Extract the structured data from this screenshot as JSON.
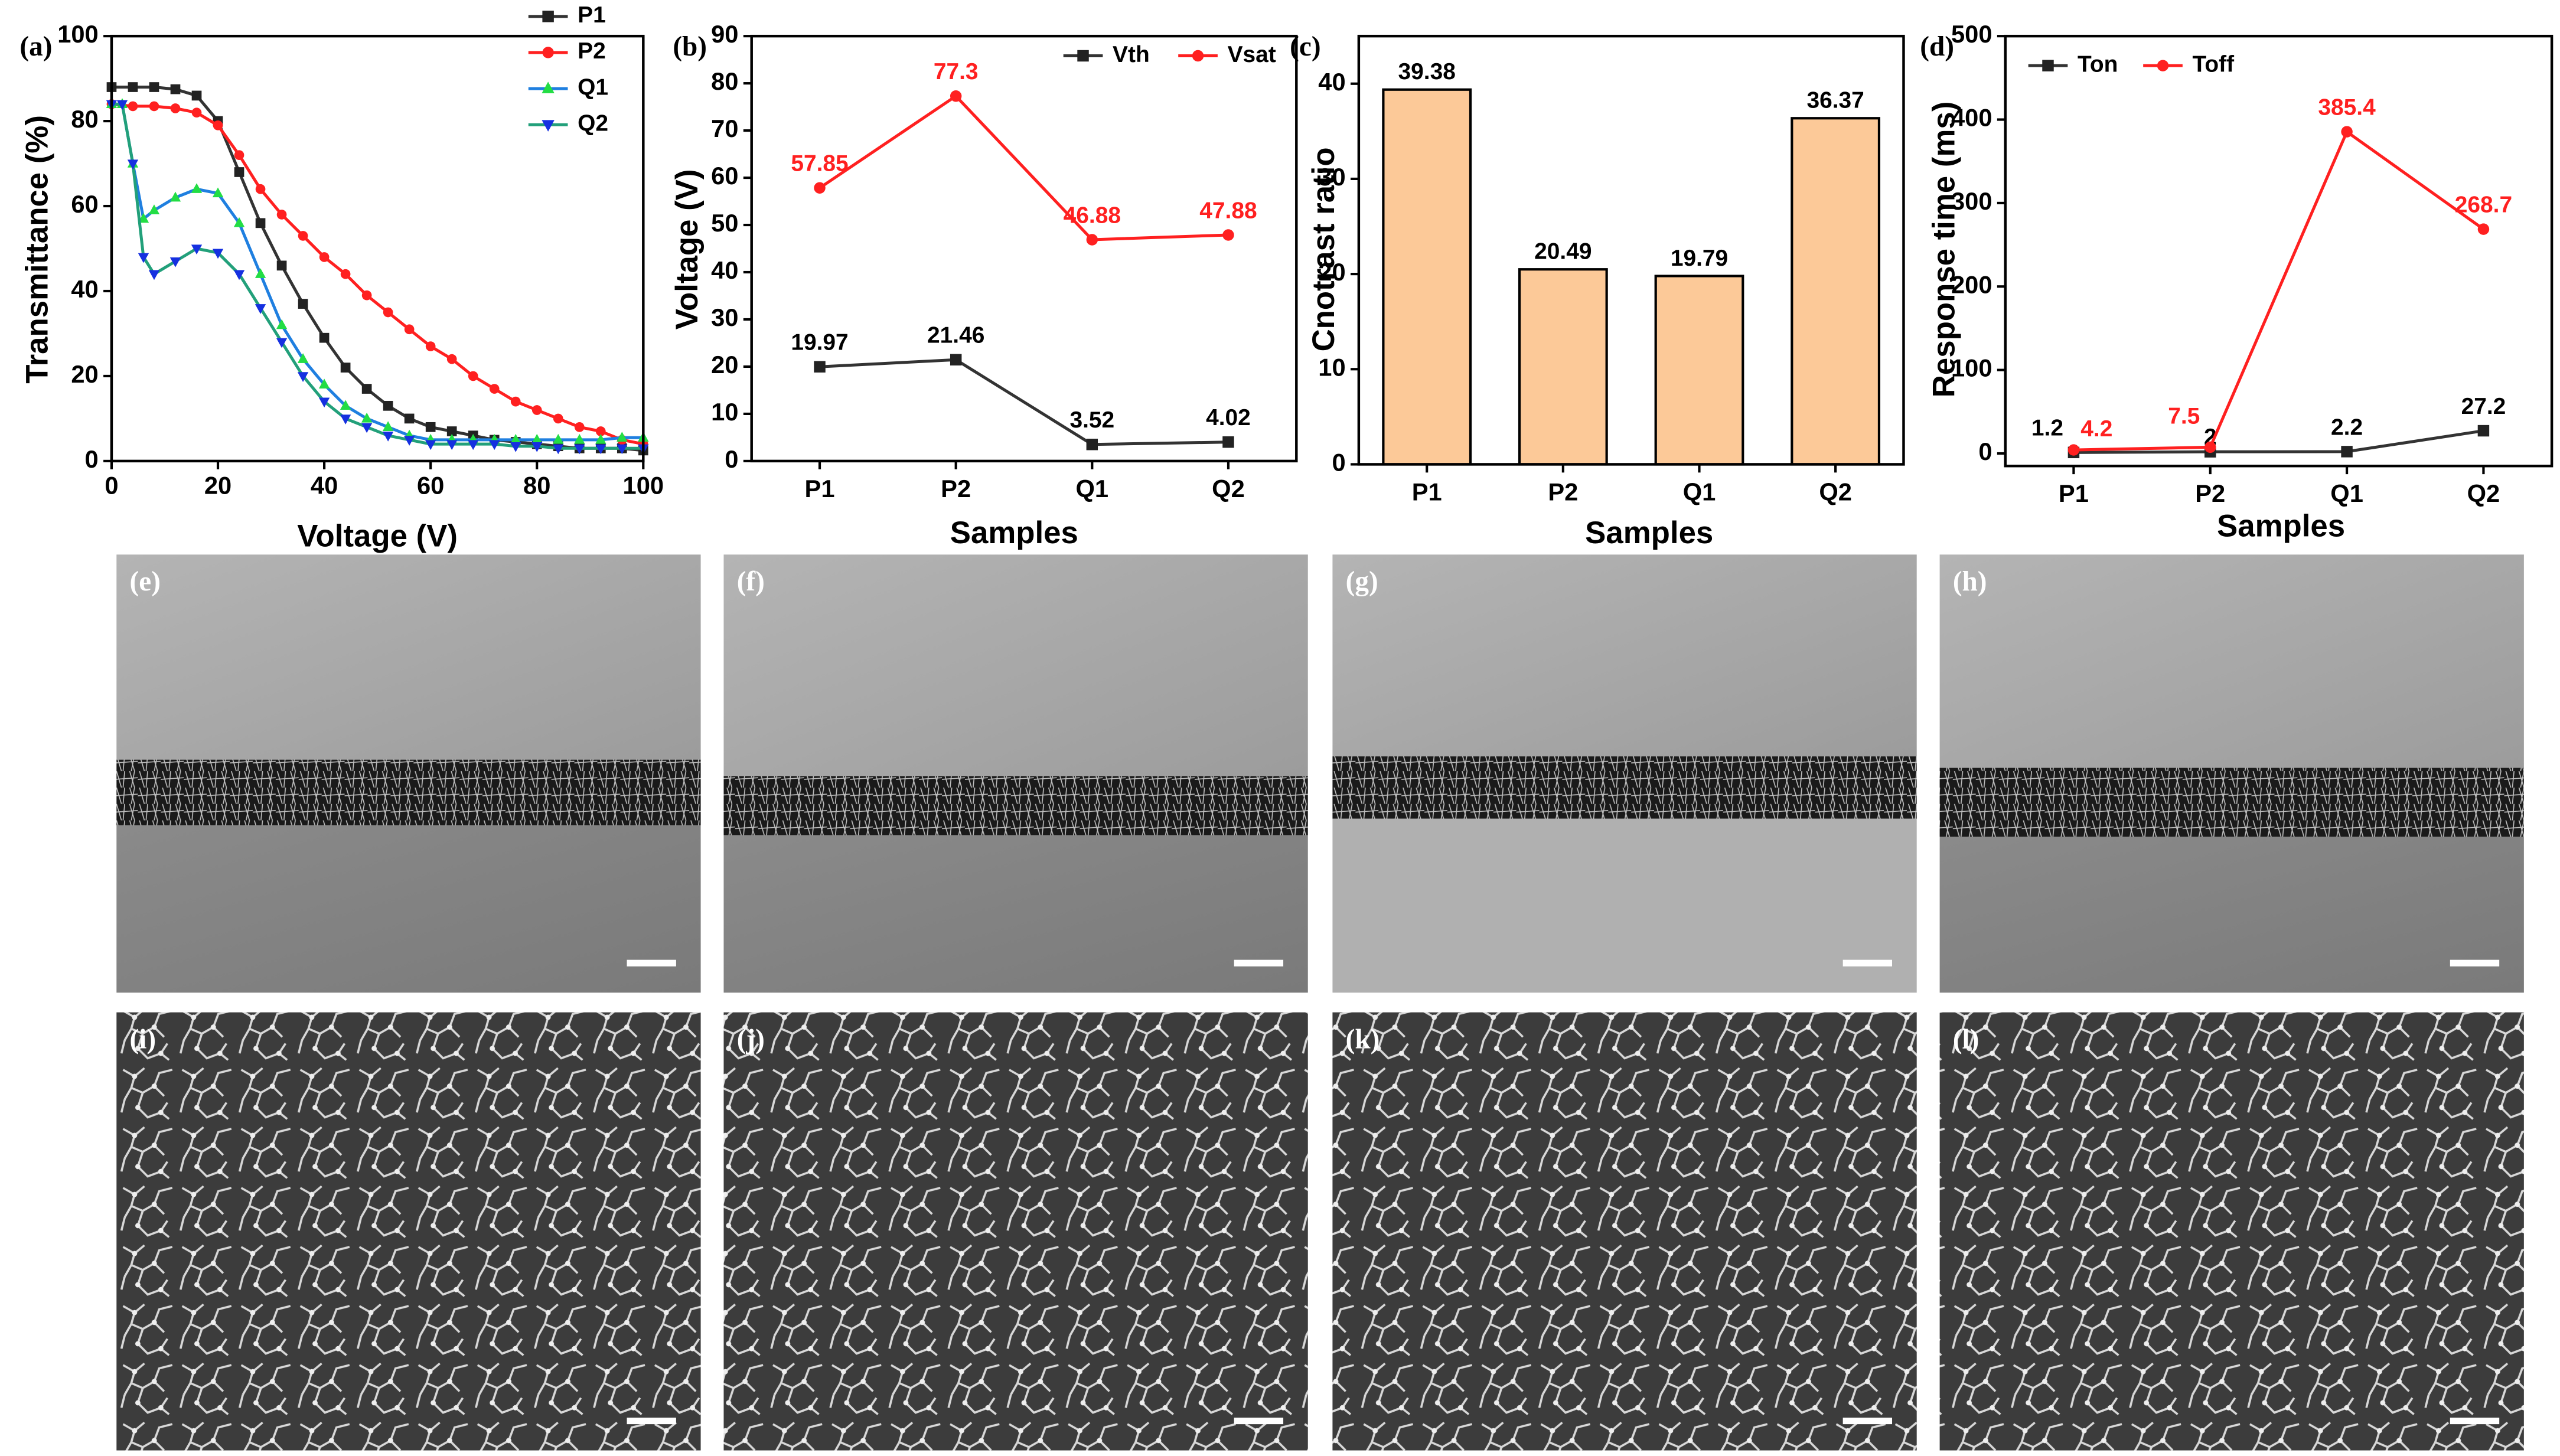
{
  "chart_data": [
    {
      "type": "line",
      "label": "(a)",
      "x_label": "Voltage (V)",
      "y_label": "Transmittance (%)",
      "xlim": [
        0,
        100
      ],
      "xticks": [
        0,
        20,
        40,
        60,
        80,
        100
      ],
      "ylim": [
        0,
        100
      ],
      "yticks": [
        0,
        20,
        40,
        60,
        80,
        100
      ],
      "legend": "upper right",
      "series": [
        {
          "name": "P1",
          "color": "#333333",
          "marker_color": "#222222",
          "marker": "square",
          "x": [
            0,
            4,
            8,
            12,
            16,
            20,
            24,
            28,
            32,
            36,
            40,
            44,
            48,
            52,
            56,
            60,
            64,
            68,
            72,
            76,
            80,
            84,
            88,
            92,
            96,
            100
          ],
          "values": [
            88,
            88,
            88,
            87.5,
            86,
            80,
            68,
            56,
            46,
            37,
            29,
            22,
            17,
            13,
            10,
            8,
            7,
            6,
            5,
            4.5,
            4,
            3.5,
            3,
            3,
            3,
            2.5
          ]
        },
        {
          "name": "P2",
          "color": "#ff2020",
          "marker_color": "#ff2020",
          "marker": "circle",
          "x": [
            0,
            4,
            8,
            12,
            16,
            20,
            24,
            28,
            32,
            36,
            40,
            44,
            48,
            52,
            56,
            60,
            64,
            68,
            72,
            76,
            80,
            84,
            88,
            92,
            96,
            100
          ],
          "values": [
            84,
            83.5,
            83.5,
            83,
            82,
            79,
            72,
            64,
            58,
            53,
            48,
            44,
            39,
            35,
            31,
            27,
            24,
            20,
            17,
            14,
            12,
            10,
            8,
            7,
            5,
            4
          ]
        },
        {
          "name": "Q1",
          "color": "#1f7fe0",
          "marker_color": "#22dd44",
          "marker": "tri-up",
          "x": [
            0,
            2,
            4,
            6,
            8,
            12,
            16,
            20,
            24,
            28,
            32,
            36,
            40,
            44,
            48,
            52,
            56,
            60,
            64,
            68,
            72,
            76,
            80,
            84,
            88,
            92,
            96,
            100
          ],
          "values": [
            84,
            84,
            70,
            57,
            59,
            62,
            64,
            63,
            56,
            44,
            32,
            24,
            18,
            13,
            10,
            8,
            6,
            5,
            5,
            5,
            5,
            5,
            5,
            5,
            5,
            5,
            5.5,
            5.5
          ]
        },
        {
          "name": "Q2",
          "color": "#22a07a",
          "marker_color": "#1530e0",
          "marker": "tri-down",
          "x": [
            0,
            2,
            4,
            6,
            8,
            12,
            16,
            20,
            24,
            28,
            32,
            36,
            40,
            44,
            48,
            52,
            56,
            60,
            64,
            68,
            72,
            76,
            80,
            84,
            88,
            92,
            96,
            100
          ],
          "values": [
            84,
            84,
            70,
            48,
            44,
            47,
            50,
            49,
            44,
            36,
            28,
            20,
            14,
            10,
            8,
            6,
            5,
            4,
            4,
            4,
            4,
            3.5,
            3.5,
            3,
            3,
            3,
            3,
            3
          ]
        }
      ]
    },
    {
      "type": "line",
      "label": "(b)",
      "x_label": "Samples",
      "y_label": "Voltage (V)",
      "categories": [
        "P1",
        "P2",
        "Q1",
        "Q2"
      ],
      "ylim": [
        0,
        90
      ],
      "yticks": [
        0,
        10,
        20,
        30,
        40,
        50,
        60,
        70,
        80,
        90
      ],
      "legend": "top",
      "series": [
        {
          "name": "Vth",
          "color": "#333333",
          "marker_color": "#222222",
          "marker": "square",
          "values": [
            19.97,
            21.46,
            3.52,
            4.02
          ]
        },
        {
          "name": "Vsat",
          "color": "#ff2020",
          "marker_color": "#ff2020",
          "marker": "circle",
          "values": [
            57.85,
            77.3,
            46.88,
            47.88
          ]
        }
      ]
    },
    {
      "type": "bar",
      "label": "(c)",
      "x_label": "Samples",
      "y_label": "Cnotrast ratio",
      "categories": [
        "P1",
        "P2",
        "Q1",
        "Q2"
      ],
      "values": [
        39.38,
        20.49,
        19.79,
        36.37
      ],
      "color": "#fcc998",
      "ylim": [
        0,
        45
      ],
      "yticks": [
        0,
        10,
        20,
        30,
        40
      ]
    },
    {
      "type": "line",
      "label": "(d)",
      "x_label": "Samples",
      "y_label": "Response time (ms)",
      "categories": [
        "P1",
        "P2",
        "Q1",
        "Q2"
      ],
      "ylim": [
        -15,
        500
      ],
      "yticks": [
        0,
        100,
        200,
        300,
        400,
        500
      ],
      "legend": "top",
      "series": [
        {
          "name": "Ton",
          "color": "#333333",
          "marker_color": "#222222",
          "marker": "square",
          "values": [
            1.2,
            2,
            2.2,
            27.2
          ]
        },
        {
          "name": "Toff",
          "color": "#ff2020",
          "marker_color": "#ff2020",
          "marker": "circle",
          "values": [
            4.2,
            7.5,
            385.4,
            268.7
          ]
        }
      ]
    }
  ],
  "images": [
    {
      "label": "(e)"
    },
    {
      "label": "(f)"
    },
    {
      "label": "(g)"
    },
    {
      "label": "(h)"
    },
    {
      "label": "(i)"
    },
    {
      "label": "(j)"
    },
    {
      "label": "(k)"
    },
    {
      "label": "(l)"
    }
  ]
}
